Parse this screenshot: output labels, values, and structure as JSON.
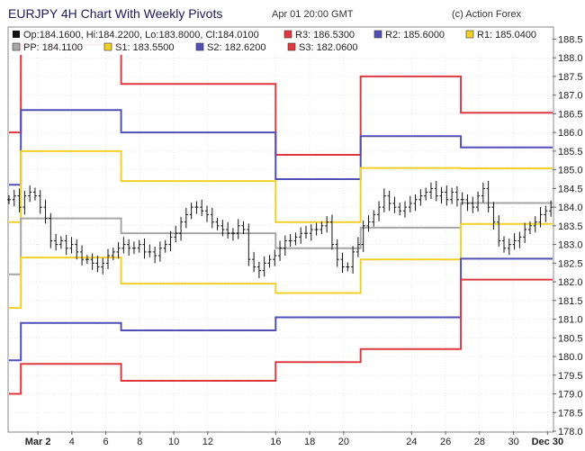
{
  "header": {
    "title": "EURJPY 4H Chart With Weekly Pivots",
    "timestamp": "Apr 01 20:00 GMT",
    "copyright": "(c) Action Forex"
  },
  "legend": {
    "ohlc": "Op:184.1600, Hi:184.2200, Lo:183.8000, Cl:184.0100",
    "items": [
      {
        "key": "r3",
        "label": "R3: 186.5300",
        "color": "#e0383f"
      },
      {
        "key": "r2",
        "label": "R2: 185.6000",
        "color": "#4f4fb5"
      },
      {
        "key": "r1",
        "label": "R1: 185.0400",
        "color": "#f2d028"
      },
      {
        "key": "pp",
        "label": "PP: 184.1100",
        "color": "#a6a6a6"
      },
      {
        "key": "s1",
        "label": "S1: 183.5500",
        "color": "#f2d028"
      },
      {
        "key": "s2",
        "label": "S2: 182.6200",
        "color": "#4f4fb5"
      },
      {
        "key": "s3",
        "label": "S3: 182.0600",
        "color": "#e0383f"
      }
    ]
  },
  "chart_data": {
    "type": "line",
    "title": "EURJPY 4H Chart With Weekly Pivots",
    "ylim": [
      178.0,
      188.8
    ],
    "xlim": [
      0.3,
      32.3
    ],
    "y_ticks": [
      178.0,
      178.5,
      179.0,
      179.5,
      180.0,
      180.5,
      181.0,
      181.5,
      182.0,
      182.5,
      183.0,
      183.5,
      184.0,
      184.5,
      185.0,
      185.5,
      186.0,
      186.5,
      187.0,
      187.5,
      188.0,
      188.5
    ],
    "x_ticks": [
      {
        "x": 2,
        "label": "Mar 2",
        "bold": true
      },
      {
        "x": 4,
        "label": "4",
        "bold": false
      },
      {
        "x": 6,
        "label": "6",
        "bold": false
      },
      {
        "x": 8,
        "label": "8",
        "bold": false
      },
      {
        "x": 10,
        "label": "10",
        "bold": false
      },
      {
        "x": 12,
        "label": "12",
        "bold": false
      },
      {
        "x": 16,
        "label": "16",
        "bold": false
      },
      {
        "x": 18,
        "label": "18",
        "bold": false
      },
      {
        "x": 20,
        "label": "20",
        "bold": false
      },
      {
        "x": 24,
        "label": "24",
        "bold": false
      },
      {
        "x": 26,
        "label": "26",
        "bold": false
      },
      {
        "x": 28,
        "label": "28",
        "bold": false
      },
      {
        "x": 30,
        "label": "30",
        "bold": false
      },
      {
        "x": 32,
        "label": "Dec 30",
        "bold": true
      }
    ],
    "pivot_series": [
      {
        "name": "R3",
        "color": "#e0383f",
        "segments": [
          [
            0.3,
            1.0,
            186.0
          ],
          [
            1.0,
            6.9,
            188.35
          ],
          [
            6.9,
            16.0,
            187.3
          ],
          [
            16.0,
            21.0,
            185.4
          ],
          [
            21.0,
            26.9,
            187.5
          ],
          [
            26.9,
            32.3,
            186.53
          ]
        ]
      },
      {
        "name": "R2",
        "color": "#4f4fb5",
        "segments": [
          [
            0.3,
            1.0,
            184.6
          ],
          [
            1.0,
            6.9,
            186.6
          ],
          [
            6.9,
            16.0,
            186.0
          ],
          [
            16.0,
            21.0,
            184.75
          ],
          [
            21.0,
            26.9,
            185.9
          ],
          [
            26.9,
            32.3,
            185.6
          ]
        ]
      },
      {
        "name": "R1",
        "color": "#f2d028",
        "segments": [
          [
            0.3,
            1.0,
            183.6
          ],
          [
            1.0,
            6.9,
            185.5
          ],
          [
            6.9,
            16.0,
            184.7
          ],
          [
            16.0,
            21.0,
            183.6
          ],
          [
            21.0,
            26.9,
            185.05
          ],
          [
            26.9,
            32.3,
            185.04
          ]
        ]
      },
      {
        "name": "PP",
        "color": "#a6a6a6",
        "segments": [
          [
            0.3,
            1.0,
            182.2
          ],
          [
            1.0,
            6.9,
            183.7
          ],
          [
            6.9,
            16.0,
            183.3
          ],
          [
            16.0,
            21.0,
            182.9
          ],
          [
            21.0,
            26.9,
            183.45
          ],
          [
            26.9,
            32.3,
            184.11
          ]
        ]
      },
      {
        "name": "S1",
        "color": "#f2d028",
        "segments": [
          [
            0.3,
            1.0,
            181.3
          ],
          [
            1.0,
            6.9,
            182.65
          ],
          [
            6.9,
            16.0,
            181.95
          ],
          [
            16.0,
            21.0,
            181.7
          ],
          [
            21.0,
            26.9,
            182.6
          ],
          [
            26.9,
            32.3,
            183.55
          ]
        ]
      },
      {
        "name": "S2",
        "color": "#4f4fb5",
        "segments": [
          [
            0.3,
            1.0,
            179.9
          ],
          [
            1.0,
            6.9,
            180.9
          ],
          [
            6.9,
            16.0,
            180.7
          ],
          [
            16.0,
            21.0,
            181.05
          ],
          [
            21.0,
            26.9,
            181.05
          ],
          [
            26.9,
            32.3,
            182.62
          ]
        ]
      },
      {
        "name": "S3",
        "color": "#e0383f",
        "segments": [
          [
            0.3,
            1.0,
            179.0
          ],
          [
            1.0,
            6.9,
            179.8
          ],
          [
            6.9,
            16.0,
            179.35
          ],
          [
            16.0,
            21.0,
            179.85
          ],
          [
            21.0,
            26.9,
            180.2
          ],
          [
            26.9,
            32.3,
            182.06
          ]
        ]
      }
    ],
    "price_close": [
      184.2,
      184.3,
      184.0,
      184.3,
      184.4,
      184.3,
      184.0,
      183.7,
      183.1,
      183.0,
      183.1,
      182.9,
      183.0,
      182.8,
      182.6,
      182.6,
      182.5,
      182.4,
      182.5,
      182.7,
      182.8,
      182.9,
      183.0,
      182.9,
      182.9,
      183.0,
      182.8,
      182.8,
      182.7,
      182.9,
      183.0,
      183.2,
      183.3,
      183.6,
      183.8,
      184.0,
      184.0,
      183.9,
      183.8,
      183.6,
      183.5,
      183.4,
      183.3,
      183.3,
      183.5,
      183.4,
      182.6,
      182.4,
      182.3,
      182.5,
      182.6,
      182.7,
      182.9,
      183.1,
      183.1,
      183.2,
      183.3,
      183.3,
      183.4,
      183.4,
      183.5,
      183.6,
      183.0,
      182.6,
      182.4,
      182.4,
      182.8,
      183.0,
      183.5,
      183.6,
      183.8,
      184.0,
      184.3,
      184.1,
      184.0,
      183.9,
      184.0,
      184.1,
      184.2,
      184.3,
      184.4,
      184.5,
      184.3,
      184.4,
      184.2,
      184.4,
      184.2,
      184.2,
      184.1,
      184.0,
      184.3,
      184.5,
      184.0,
      183.6,
      183.1,
      182.9,
      183.0,
      183.1,
      183.2,
      183.4,
      183.5,
      183.6,
      183.8,
      183.9,
      184.0
    ]
  }
}
